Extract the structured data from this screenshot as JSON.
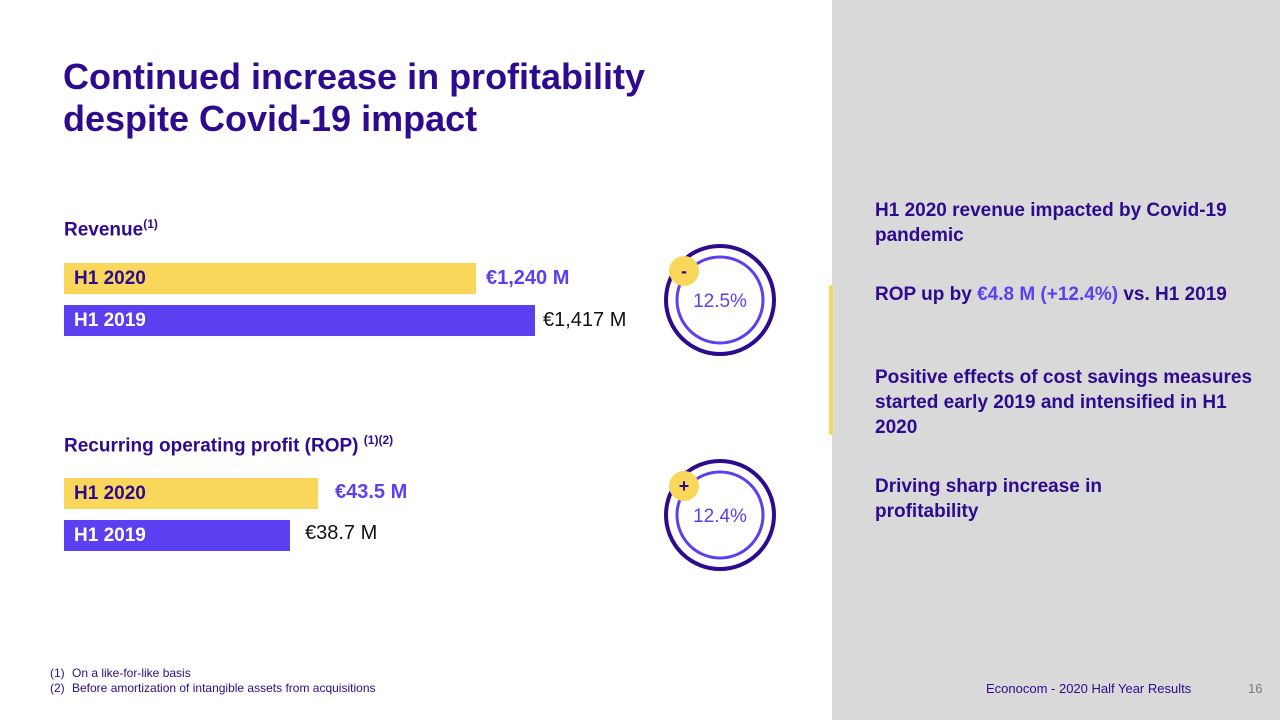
{
  "slide": {
    "title_line1": "Continued increase in profitability",
    "title_line2": "despite Covid-19 impact",
    "page_number": "16",
    "footer": "Econocom  - 2020 Half Year Results"
  },
  "colors": {
    "brand_dark": "#2e0a8e",
    "accent_purple": "#5b3ff0",
    "accent_yellow": "#f9d75a",
    "panel_gray": "#d9d9d9"
  },
  "chart_data": [
    {
      "type": "bar",
      "orientation": "horizontal",
      "title": "Revenue",
      "title_note": "(1)",
      "categories": [
        "H1 2020",
        "H1 2019"
      ],
      "values": [
        1240,
        1417
      ],
      "value_labels": [
        "€1,240 M",
        "€1,417 M"
      ],
      "unit": "€ M",
      "change": {
        "sign": "-",
        "percent": "12.5%"
      }
    },
    {
      "type": "bar",
      "orientation": "horizontal",
      "title": "Recurring operating profit (ROP)",
      "title_note": "(1)(2)",
      "categories": [
        "H1 2020",
        "H1 2019"
      ],
      "values": [
        43.5,
        38.7
      ],
      "value_labels": [
        "€43.5 M",
        "€38.7 M"
      ],
      "unit": "€ M",
      "change": {
        "sign": "+",
        "percent": "12.4%"
      }
    }
  ],
  "highlights": [
    {
      "strong": "H1 2020 revenue",
      "rest": " impacted by Covid-19 pandemic"
    },
    {
      "pre": "ROP up by ",
      "hl": "€4.8 M (+12.4%)",
      "post": " vs. H1 2019"
    },
    {
      "strong": "Positive effects of cost savings",
      "rest": " measures started early 2019 and intensified  in H1 2020"
    },
    {
      "strong": "Driving sharp increase in profitability"
    }
  ],
  "footnotes": [
    {
      "num": "(1)",
      "text": "On a like-for-like  basis"
    },
    {
      "num": "(2)",
      "text": "Before amortization of intangible assets from acquisitions"
    }
  ]
}
